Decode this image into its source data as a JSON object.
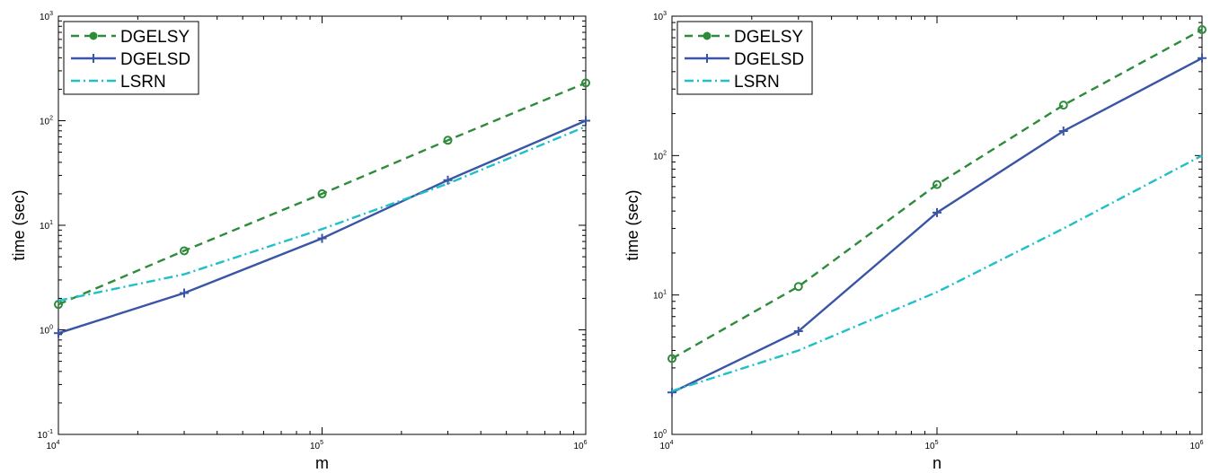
{
  "chart_data": [
    {
      "type": "line",
      "xlabel": "m",
      "ylabel": "time (sec)",
      "xscale": "log",
      "yscale": "log",
      "xlim": [
        10000,
        1000000
      ],
      "ylim": [
        0.1,
        1000
      ],
      "x_ticks": [
        {
          "base": "10",
          "exp": "4"
        },
        {
          "base": "10",
          "exp": "5"
        },
        {
          "base": "10",
          "exp": "6"
        }
      ],
      "y_ticks": [
        {
          "base": "10",
          "exp": "-1"
        },
        {
          "base": "10",
          "exp": "0"
        },
        {
          "base": "10",
          "exp": "1"
        },
        {
          "base": "10",
          "exp": "2"
        },
        {
          "base": "10",
          "exp": "3"
        }
      ],
      "legend_position": "top-left",
      "series": [
        {
          "name": "DGELSY",
          "color": "#2e8b3a",
          "style": "dashed",
          "marker": "circle",
          "x": [
            10000,
            30000,
            100000,
            300000,
            1000000
          ],
          "y": [
            1.75,
            5.7,
            20,
            65,
            230
          ]
        },
        {
          "name": "DGELSD",
          "color": "#3a55a6",
          "style": "solid",
          "marker": "plus",
          "x": [
            10000,
            30000,
            100000,
            300000,
            1000000
          ],
          "y": [
            0.93,
            2.25,
            7.5,
            27,
            100
          ]
        },
        {
          "name": "LSRN",
          "color": "#20c0c8",
          "style": "dashdot",
          "marker": "none",
          "x": [
            10000,
            30000,
            100000,
            300000,
            1000000
          ],
          "y": [
            1.9,
            3.4,
            9.2,
            25,
            88
          ]
        }
      ]
    },
    {
      "type": "line",
      "xlabel": "n",
      "ylabel": "time (sec)",
      "xscale": "log",
      "yscale": "log",
      "xlim": [
        10000,
        1000000
      ],
      "ylim": [
        1,
        1000
      ],
      "x_ticks": [
        {
          "base": "10",
          "exp": "4"
        },
        {
          "base": "10",
          "exp": "5"
        },
        {
          "base": "10",
          "exp": "6"
        }
      ],
      "y_ticks": [
        {
          "base": "10",
          "exp": "0"
        },
        {
          "base": "10",
          "exp": "1"
        },
        {
          "base": "10",
          "exp": "2"
        },
        {
          "base": "10",
          "exp": "3"
        }
      ],
      "legend_position": "top-left",
      "series": [
        {
          "name": "DGELSY",
          "color": "#2e8b3a",
          "style": "dashed",
          "marker": "circle",
          "x": [
            10000,
            30000,
            100000,
            300000,
            1000000
          ],
          "y": [
            3.5,
            11.5,
            62,
            230,
            800
          ]
        },
        {
          "name": "DGELSD",
          "color": "#3a55a6",
          "style": "solid",
          "marker": "plus",
          "x": [
            10000,
            30000,
            100000,
            300000,
            1000000
          ],
          "y": [
            2.0,
            5.5,
            39,
            150,
            500
          ]
        },
        {
          "name": "LSRN",
          "color": "#20c0c8",
          "style": "dashdot",
          "marker": "none",
          "x": [
            10000,
            30000,
            100000,
            300000,
            1000000
          ],
          "y": [
            2.05,
            4.0,
            10.5,
            30,
            100
          ]
        }
      ]
    }
  ]
}
